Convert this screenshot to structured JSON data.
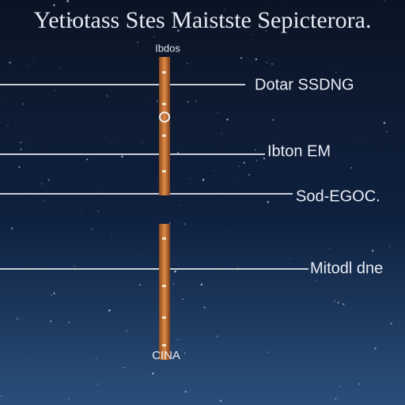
{
  "title": "Yetiotass Stes Maistste Sepicterora.",
  "top_label": "Ibdos",
  "labels": [
    "Dotar  SSDNG",
    "Ibton EM",
    "Sod-EGOC.",
    "Mitodl dne"
  ],
  "bottom_label": "CINA"
}
